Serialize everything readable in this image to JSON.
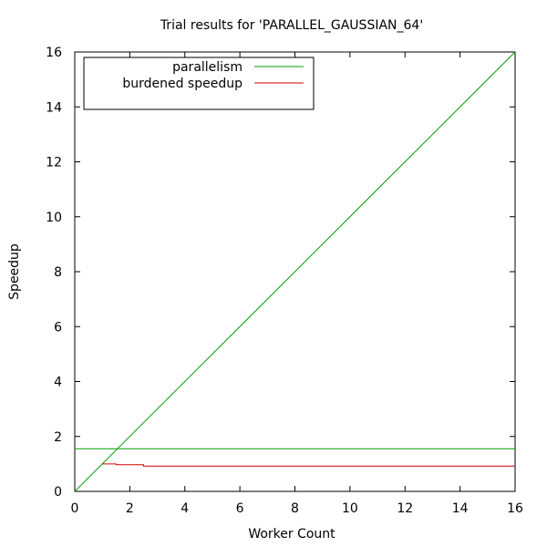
{
  "chart_data": {
    "type": "line",
    "title": "Trial results for 'PARALLEL_GAUSSIAN_64'",
    "xlabel": "Worker Count",
    "ylabel": "Speedup",
    "xlim": [
      0,
      16
    ],
    "ylim": [
      0,
      16
    ],
    "xticks": [
      0,
      2,
      4,
      6,
      8,
      10,
      12,
      14,
      16
    ],
    "yticks": [
      0,
      2,
      4,
      6,
      8,
      10,
      12,
      14,
      16
    ],
    "xtick_labels": [
      "0",
      "2",
      "4",
      "6",
      "8",
      "10",
      "12",
      "14",
      "16"
    ],
    "ytick_labels": [
      "0",
      "2",
      "4",
      "6",
      "8",
      "10",
      "12",
      "14",
      "16"
    ],
    "grid": false,
    "legend_position": "top-left",
    "series": [
      {
        "name": "parallelism",
        "color": "#00a000",
        "segments": [
          {
            "x": [
              0,
              16
            ],
            "y": [
              0,
              16
            ]
          },
          {
            "x": [
              0,
              16
            ],
            "y": [
              1.55,
              1.55
            ]
          }
        ]
      },
      {
        "name": "burdened speedup",
        "color": "#d00000",
        "segments": [
          {
            "x": [
              1,
              1.5,
              1.5,
              2.5,
              2.5,
              16
            ],
            "y": [
              1.0,
              1.0,
              0.97,
              0.97,
              0.92,
              0.92
            ]
          }
        ]
      }
    ]
  }
}
